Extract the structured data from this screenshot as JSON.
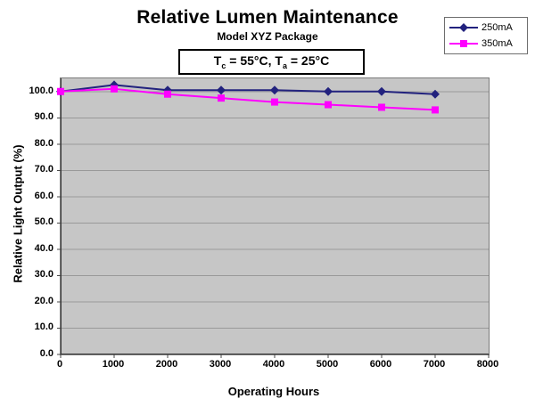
{
  "header": {
    "title": "Relative Lumen Maintenance",
    "subtitle": "Model XYZ Package"
  },
  "annotation": {
    "part1": "T",
    "sub1": "c",
    "part2": " = 55°C, T",
    "sub2": "a",
    "part3": " = 25°C"
  },
  "chart_data": {
    "type": "line",
    "title": "Relative Lumen Maintenance",
    "subtitle": "Model XYZ Package",
    "xlabel": "Operating Hours",
    "ylabel": "Relative Light Output (%)",
    "x": [
      0,
      1000,
      2000,
      3000,
      4000,
      5000,
      6000,
      7000
    ],
    "series": [
      {
        "name": "250mA",
        "color": "#22227E",
        "marker": "diamond",
        "values": [
          100.0,
          102.5,
          100.5,
          100.5,
          100.5,
          100.0,
          100.0,
          99.0
        ]
      },
      {
        "name": "350mA",
        "color": "#FF00FF",
        "marker": "square",
        "values": [
          100.0,
          101.0,
          99.0,
          97.5,
          96.0,
          95.0,
          94.0,
          93.0
        ]
      }
    ],
    "xlim": [
      0,
      8000
    ],
    "ylim": [
      0,
      105
    ],
    "x_ticks": [
      0,
      1000,
      2000,
      3000,
      4000,
      5000,
      6000,
      7000,
      8000
    ],
    "x_tick_labels": [
      "0",
      "1000",
      "2000",
      "3000",
      "4000",
      "5000",
      "6000",
      "7000",
      "8000"
    ],
    "y_ticks": [
      0,
      10,
      20,
      30,
      40,
      50,
      60,
      70,
      80,
      90,
      100
    ],
    "y_tick_labels": [
      "0.0",
      "10.0",
      "20.0",
      "30.0",
      "40.0",
      "50.0",
      "60.0",
      "70.0",
      "80.0",
      "90.0",
      "100.0"
    ],
    "grid": "horizontal-major",
    "legend_position": "top-right",
    "plot_bg": "#C6C6C6",
    "grid_color": "#999999",
    "axis_color": "#4a4a4a"
  }
}
